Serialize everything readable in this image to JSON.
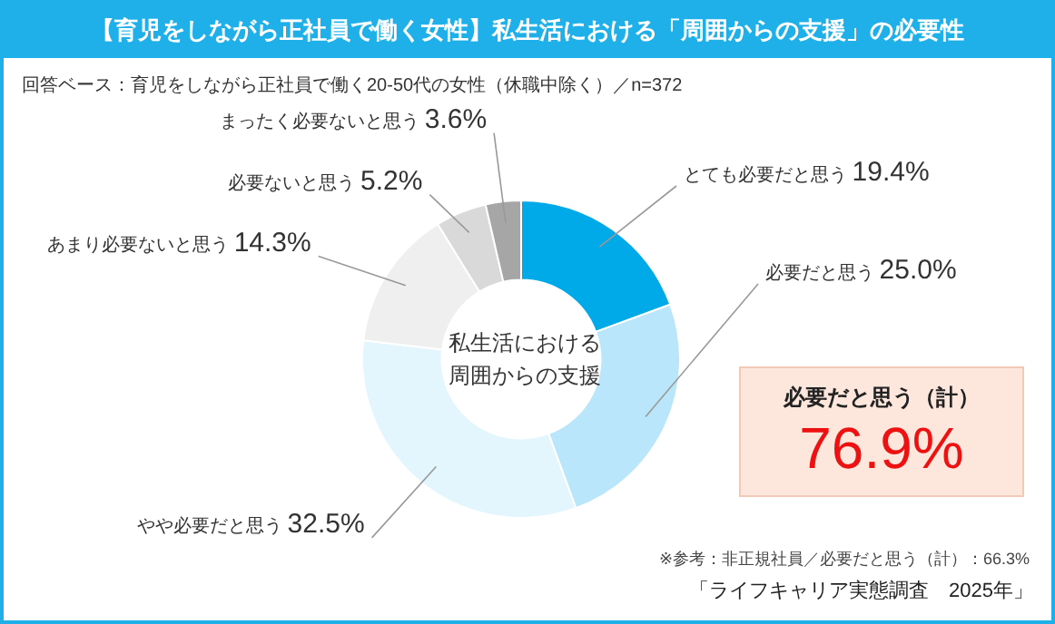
{
  "chart_data": {
    "type": "donut",
    "title": "【育児をしながら正社員で働く女性】私生活における「周囲からの支援」の必要性",
    "subtitle": "回答ベース：育児をしながら正社員で働く20-50代の女性（休職中除く）／n=372",
    "categories": [
      "とても必要だと思う",
      "必要だと思う",
      "やや必要だと思う",
      "あまり必要ないと思う",
      "必要ないと思う",
      "まったく必要ないと思う"
    ],
    "values": [
      19.4,
      25.0,
      32.5,
      14.3,
      5.2,
      3.6
    ],
    "value_labels": [
      "19.4%",
      "25.0%",
      "32.5%",
      "14.3%",
      "5.2%",
      "3.6%"
    ],
    "colors": [
      "#00a9e8",
      "#b9e6fa",
      "#e3f5fd",
      "#efefef",
      "#d9d9d9",
      "#a6a6a6"
    ],
    "annotations": [
      "私生活における",
      "周囲からの支援",
      "必要だと思う（計）",
      "76.9%",
      "※参考：非正規社員／必要だと思う（計）：66.3%",
      "「ライフキャリア実態調査　2025年」"
    ],
    "legend": false
  }
}
